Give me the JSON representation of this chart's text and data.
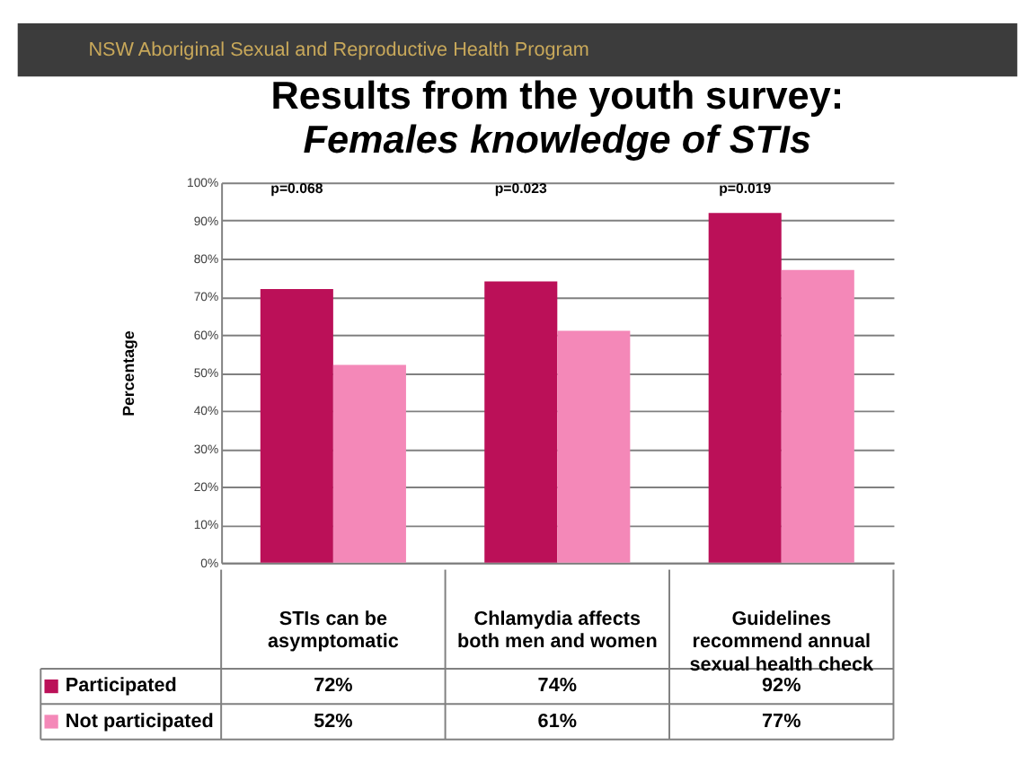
{
  "chart_data": {
    "type": "bar",
    "title": "Results from the youth survey:",
    "subtitle": "Females knowledge of STIs",
    "ylabel": "Percentage",
    "categories": [
      "STIs can be asymptomatic",
      "Chlamydia affects both men and women",
      "Guidelines recommend annual sexual health check"
    ],
    "series": [
      {
        "name": "Participated",
        "color": "#bb1058",
        "values": [
          72,
          74,
          92
        ],
        "value_labels": [
          "72%",
          "74%",
          "92%"
        ]
      },
      {
        "name": "Not participated",
        "color": "#f488b8",
        "values": [
          52,
          61,
          77
        ],
        "value_labels": [
          "52%",
          "61%",
          "77%"
        ]
      }
    ],
    "ylim": [
      0,
      100
    ],
    "yticks": [
      {
        "value": 0,
        "label": "0%"
      },
      {
        "value": 10,
        "label": "10%"
      },
      {
        "value": 20,
        "label": "20%"
      },
      {
        "value": 30,
        "label": "30%"
      },
      {
        "value": 40,
        "label": "40%"
      },
      {
        "value": 50,
        "label": "50%"
      },
      {
        "value": 60,
        "label": "60%"
      },
      {
        "value": 70,
        "label": "70%"
      },
      {
        "value": 80,
        "label": "80%"
      },
      {
        "value": 90,
        "label": "90%"
      },
      {
        "value": 100,
        "label": "100%"
      }
    ],
    "grid": "y",
    "legend": "bottom left",
    "annotations": [
      "NSW Aboriginal Sexual and Reproductive Health Program",
      "p=0.068",
      "p=0.023",
      "p=0.019"
    ]
  }
}
